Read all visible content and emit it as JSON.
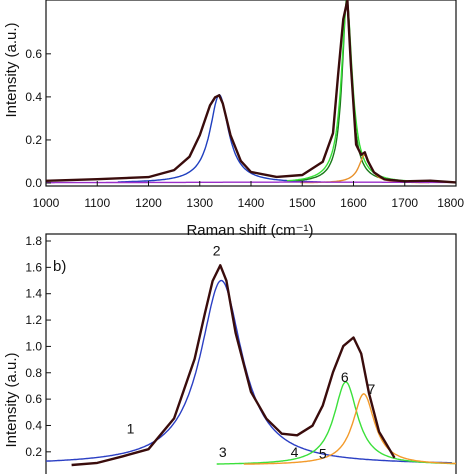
{
  "chart_data": [
    {
      "type": "line",
      "panel_label": "",
      "xlabel": "Raman shift (cm⁻¹)",
      "ylabel": "Intensity (a.u.)",
      "xlim": [
        1000,
        1800
      ],
      "ylim": [
        0,
        0.85
      ],
      "x_ticks": [
        "1000",
        "1100",
        "1200",
        "1300",
        "1400",
        "1500",
        "1600",
        "1700",
        "1800"
      ],
      "y_ticks": [
        "0.0",
        "0.2",
        "0.4",
        "0.6"
      ],
      "grid": false,
      "legend": "none",
      "series": [
        {
          "color": "#3a0c0c",
          "role": "measured spectrum",
          "x": [
            1000,
            1100,
            1200,
            1250,
            1280,
            1300,
            1320,
            1330,
            1338,
            1345,
            1360,
            1380,
            1400,
            1450,
            1500,
            1540,
            1560,
            1570,
            1580,
            1588,
            1595,
            1605,
            1615,
            1622,
            1628,
            1640,
            1660,
            1700,
            1750,
            1800
          ],
          "y": [
            0.01,
            0.02,
            0.03,
            0.06,
            0.12,
            0.22,
            0.36,
            0.4,
            0.41,
            0.37,
            0.22,
            0.1,
            0.05,
            0.03,
            0.04,
            0.1,
            0.23,
            0.5,
            0.76,
            0.85,
            0.55,
            0.18,
            0.13,
            0.14,
            0.1,
            0.05,
            0.02,
            0.01,
            0.01,
            0.0
          ]
        },
        {
          "color": "#1f3fbf",
          "role": "D-band fit",
          "center": 1338,
          "height": 0.41,
          "hwhm": 22
        },
        {
          "color": "#1a7a1a",
          "role": "G-band fit",
          "center": 1587,
          "height": 0.86,
          "hwhm": 11
        },
        {
          "color": "#35e035",
          "role": "G-band fit (light)",
          "center": 1587,
          "height": 0.84,
          "hwhm": 13
        },
        {
          "color": "#e8902a",
          "role": "D'-band fit",
          "center": 1622,
          "height": 0.13,
          "hwhm": 14
        },
        {
          "color": "#9b2fc9",
          "role": "baseline",
          "center": 1500,
          "height": 0.004,
          "hwhm": 400
        }
      ]
    },
    {
      "type": "line",
      "panel_label": "b)",
      "xlabel": "",
      "ylabel": "Intensity (a.u.)",
      "xlim": [
        1000,
        1800
      ],
      "ylim": [
        0.1,
        1.8
      ],
      "y_ticks": [
        "0.2",
        "0.4",
        "0.6",
        "0.8",
        "1.0",
        "1.2",
        "1.4",
        "1.6",
        "1.8"
      ],
      "grid": false,
      "legend": "none",
      "peak_labels": [
        "1",
        "2",
        "3",
        "4",
        "5",
        "6",
        "7"
      ],
      "series": [
        {
          "color": "#3a0c0c",
          "role": "measured spectrum",
          "x": [
            1050,
            1100,
            1150,
            1200,
            1250,
            1290,
            1310,
            1325,
            1340,
            1352,
            1370,
            1400,
            1430,
            1460,
            1490,
            1520,
            1540,
            1560,
            1580,
            1600,
            1615,
            1630,
            1650,
            1680
          ],
          "y": [
            0.1,
            0.12,
            0.17,
            0.22,
            0.45,
            0.9,
            1.25,
            1.5,
            1.62,
            1.5,
            1.1,
            0.65,
            0.45,
            0.34,
            0.33,
            0.4,
            0.55,
            0.8,
            1.0,
            1.07,
            0.95,
            0.65,
            0.35,
            0.15
          ]
        },
        {
          "color": "#2b3fc4",
          "role": "peak 3 fit",
          "center": 1342,
          "height": 1.4,
          "hwhm": 50
        },
        {
          "color": "#3be03b",
          "role": "peak 6 fit",
          "center": 1585,
          "height": 0.63,
          "hwhm": 28
        },
        {
          "color": "#f39a2a",
          "role": "peak 7 fit",
          "center": 1620,
          "height": 0.54,
          "hwhm": 26
        }
      ]
    }
  ]
}
